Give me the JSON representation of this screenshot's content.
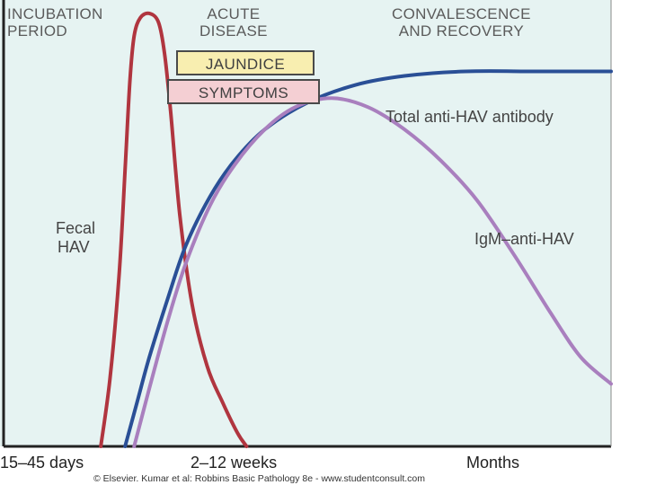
{
  "chart_data": {
    "type": "line",
    "phases": [
      {
        "label_line1": "INCUBATION",
        "label_line2": "PERIOD"
      },
      {
        "label_line1": "ACUTE",
        "label_line2": "DISEASE"
      },
      {
        "label_line1": "CONVALESCENCE",
        "label_line2": "AND RECOVERY"
      }
    ],
    "badges": [
      {
        "label": "JAUNDICE",
        "fill": "#f8eeb0",
        "border": "#4a4a4a"
      },
      {
        "label": "SYMPTOMS",
        "fill": "#f4cfd3",
        "border": "#4a4a4a"
      }
    ],
    "x_tick_labels": [
      "15–45 days",
      "2–12 weeks",
      "Months"
    ],
    "ylim": [
      0,
      100
    ],
    "xlim": [
      0,
      100
    ],
    "series": [
      {
        "name": "Fecal HAV",
        "label_line1": "Fecal",
        "label_line2": "HAV",
        "color": "#b0353f",
        "points": [
          [
            16,
            0
          ],
          [
            17.5,
            15
          ],
          [
            19,
            38
          ],
          [
            20,
            62
          ],
          [
            20.8,
            82
          ],
          [
            21.5,
            92
          ],
          [
            22.5,
            96
          ],
          [
            24,
            97
          ],
          [
            25.5,
            95
          ],
          [
            26.5,
            88
          ],
          [
            27.5,
            75
          ],
          [
            29,
            52
          ],
          [
            31,
            32
          ],
          [
            33.5,
            18
          ],
          [
            36,
            10
          ],
          [
            38.5,
            3
          ],
          [
            40,
            0
          ]
        ]
      },
      {
        "name": "Total anti-HAV antibody",
        "color": "#2a4f96",
        "points": [
          [
            20,
            0
          ],
          [
            22,
            10
          ],
          [
            24,
            20
          ],
          [
            27,
            33
          ],
          [
            30,
            45
          ],
          [
            34,
            56
          ],
          [
            38,
            64
          ],
          [
            43,
            71
          ],
          [
            50,
            77
          ],
          [
            58,
            81
          ],
          [
            66,
            83
          ],
          [
            76,
            84
          ],
          [
            88,
            84
          ],
          [
            100,
            84
          ]
        ]
      },
      {
        "name": "IgM–anti-HAV",
        "color": "#a97fbe",
        "points": [
          [
            21.5,
            0
          ],
          [
            24,
            13
          ],
          [
            27,
            28
          ],
          [
            30,
            41
          ],
          [
            34,
            54
          ],
          [
            38,
            63
          ],
          [
            43,
            71
          ],
          [
            48,
            76
          ],
          [
            54,
            78
          ],
          [
            60,
            76
          ],
          [
            66,
            71
          ],
          [
            72,
            64
          ],
          [
            78,
            55
          ],
          [
            84,
            43
          ],
          [
            90,
            30
          ],
          [
            95,
            20
          ],
          [
            100,
            14
          ]
        ]
      }
    ]
  },
  "footer": {
    "credit": "© Elsevier. Kumar et al: Robbins Basic Pathology 8e - www.studentconsult.com"
  }
}
